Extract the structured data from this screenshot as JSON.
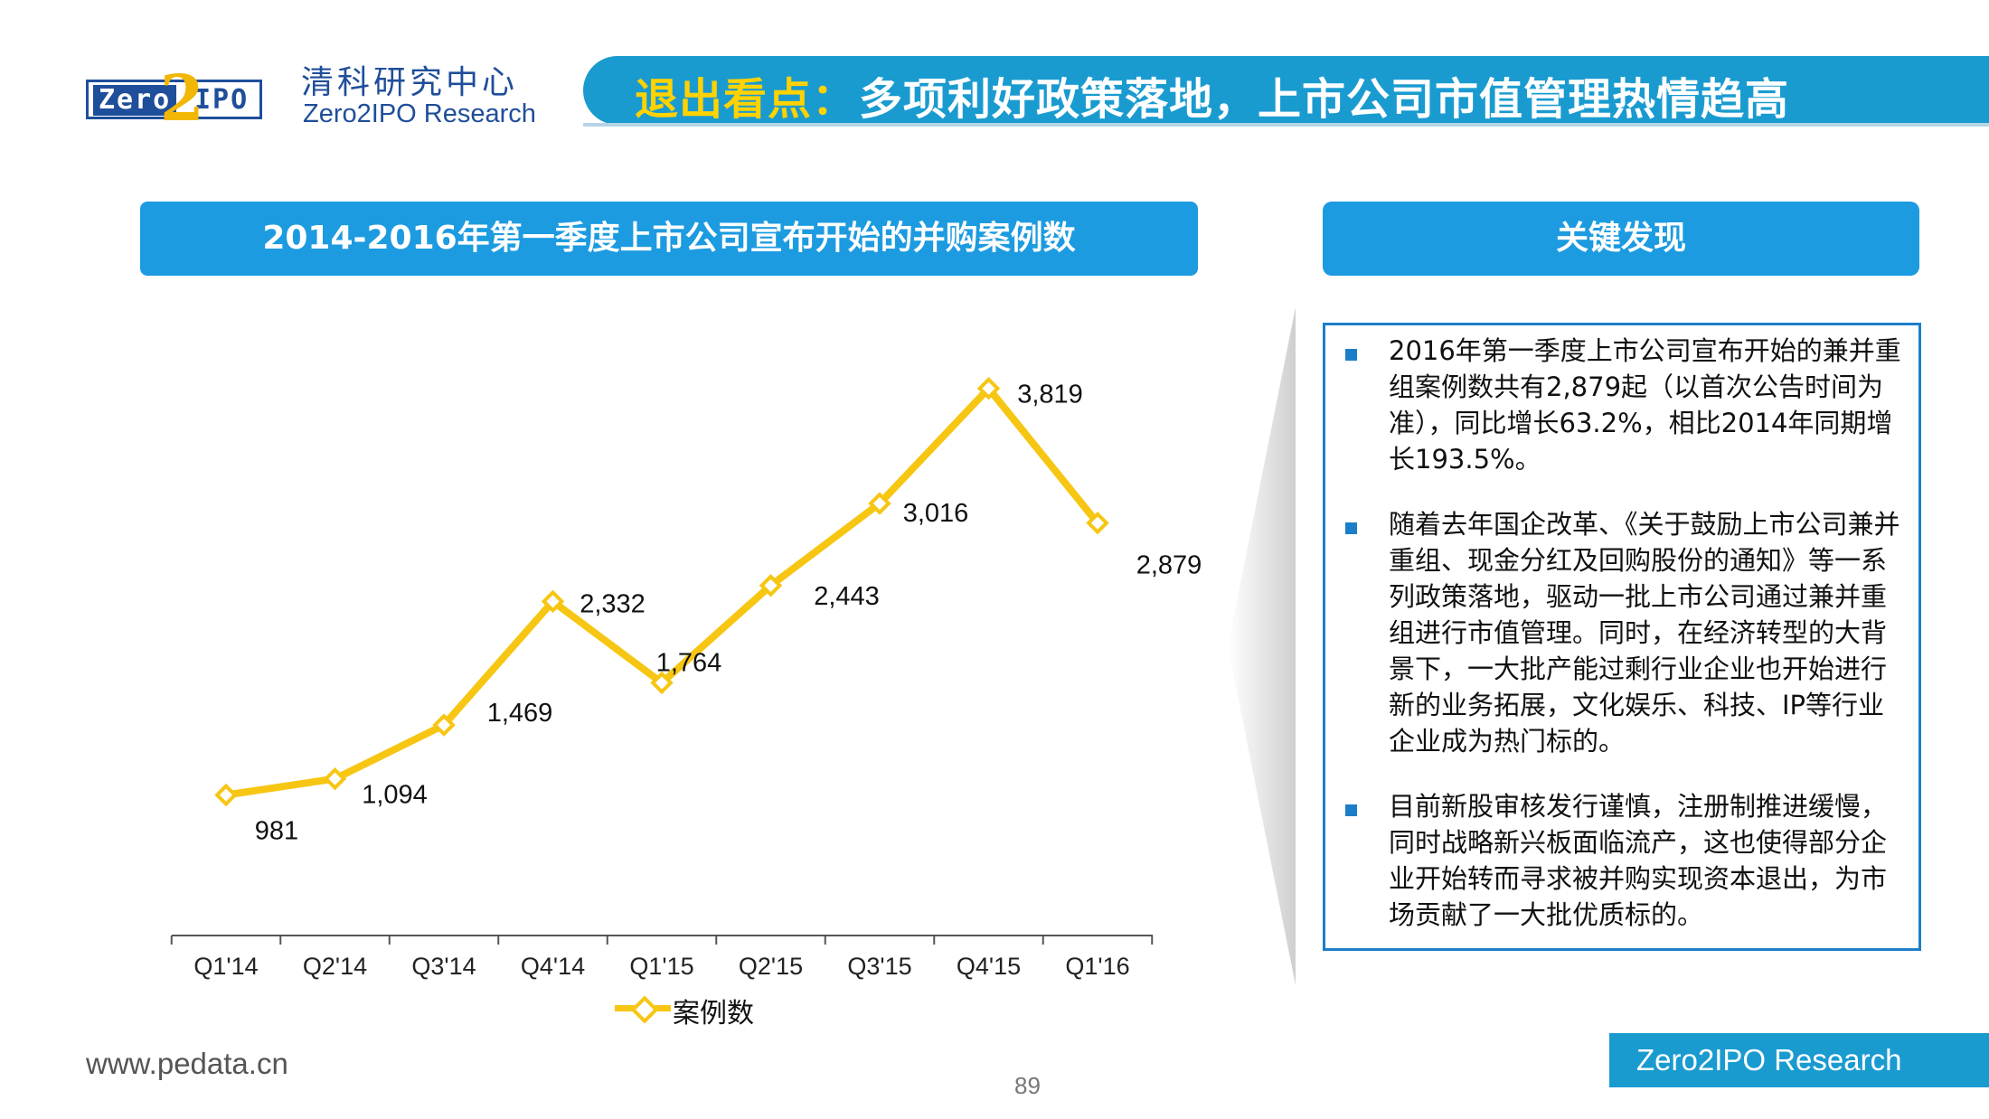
{
  "header": {
    "logo": {
      "left": "Zero",
      "numeral": "2",
      "right": "IPO"
    },
    "org_cn": "清科研究中心",
    "org_en": "Zero2IPO Research",
    "title_highlight": "退出看点：",
    "title_main": "多项利好政策落地，上市公司市值管理热情趋高"
  },
  "chart_panel": {
    "banner": "2014-2016年第一季度上市公司宣布开始的并购案例数"
  },
  "findings_panel": {
    "banner": "关键发现",
    "items": [
      "2016年第一季度上市公司宣布开始的兼并重组案例数共有2,879起（以首次公告时间为准），同比增长63.2%，相比2014年同期增长193.5%。",
      "随着去年国企改革、《关于鼓励上市公司兼并重组、现金分红及回购股份的通知》等一系列政策落地，驱动一批上市公司通过兼并重组进行市值管理。同时，在经济转型的大背景下，一大批产能过剩行业企业也开始进行新的业务拓展，文化娱乐、科技、IP等行业企业成为热门标的。",
      "目前新股审核发行谨慎，注册制推进缓慢，同时战略新兴板面临流产，这也使得部分企业开始转而寻求被并购实现资本退出，为市场贡献了一大批优质标的。"
    ]
  },
  "chart_data": {
    "type": "line",
    "title": "",
    "xlabel": "",
    "ylabel": "",
    "categories": [
      "Q1'14",
      "Q2'14",
      "Q3'14",
      "Q4'14",
      "Q1'15",
      "Q2'15",
      "Q3'15",
      "Q4'15",
      "Q1'16"
    ],
    "series": [
      {
        "name": "案例数",
        "values": [
          981,
          1094,
          1469,
          2332,
          1764,
          2443,
          3016,
          3819,
          2879
        ],
        "data_labels": [
          "981",
          "1,094",
          "1,469",
          "2,332",
          "1,764",
          "2,443",
          "3,016",
          "3,819",
          "2,879"
        ],
        "color": "#f7c613"
      }
    ],
    "ylim": [
      0,
      4500
    ],
    "grid": false,
    "legend": "bottom-center",
    "y_axis_visible": false
  },
  "footer": {
    "website": "www.pedata.cn",
    "page": "89",
    "brand": "Zero2IPO Research"
  }
}
